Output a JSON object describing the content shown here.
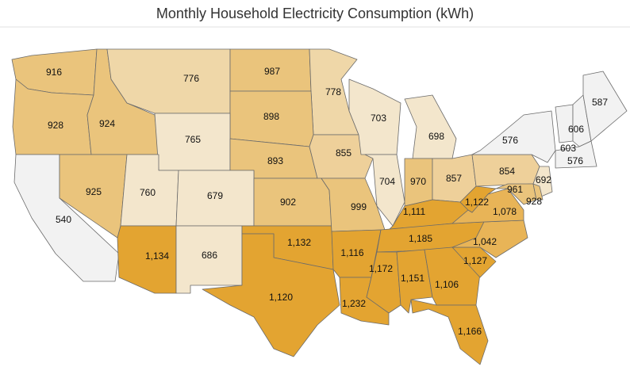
{
  "chart_data": {
    "type": "choropleth",
    "title": "Monthly Household Electricity Consumption (kWh)",
    "values": [
      916,
      928,
      924,
      776,
      987,
      778,
      898,
      765,
      893,
      855,
      703,
      698,
      540,
      925,
      760,
      679,
      1134,
      686,
      902,
      1132,
      1120,
      999,
      1116,
      1232,
      704,
      970,
      857,
      1111,
      1185,
      1172,
      1151,
      1106,
      1166,
      1127,
      1042,
      1078,
      1122,
      854,
      576,
      606,
      603,
      587,
      576,
      692,
      961,
      928
    ],
    "value_labels": [
      "916",
      "928",
      "924",
      "776",
      "987",
      "778",
      "898",
      "765",
      "893",
      "855",
      "703",
      "698",
      "540",
      "925",
      "760",
      "679",
      "1,134",
      "686",
      "902",
      "1,132",
      "1,120",
      "999",
      "1,116",
      "1,232",
      "704",
      "970",
      "857",
      "1,111",
      "1,185",
      "1,172",
      "1,151",
      "1,106",
      "1,166",
      "1,127",
      "1,042",
      "1,078",
      "1,122",
      "854",
      "576",
      "606",
      "603",
      "587",
      "576",
      "692",
      "961",
      "928"
    ],
    "colors": [
      "#eac47c",
      "#eac47c",
      "#eac47c",
      "#efd7a8",
      "#eac47c",
      "#efd7a8",
      "#eac47c",
      "#f3e6cc",
      "#eac47c",
      "#eed09a",
      "#f3e6cc",
      "#f3e6cc",
      "#f2f2f2",
      "#eac47c",
      "#f3e6cc",
      "#f3e6cc",
      "#e3a431",
      "#f3e6cc",
      "#eac47c",
      "#e3a431",
      "#e3a431",
      "#eac47c",
      "#e3a431",
      "#e3a431",
      "#f3e6cc",
      "#eac47c",
      "#eed09a",
      "#e3a431",
      "#e3a431",
      "#e3a431",
      "#e3a431",
      "#e3a431",
      "#e3a431",
      "#e3a431",
      "#e8b457",
      "#e8b457",
      "#e3a431",
      "#eed09a",
      "#f2f2f2",
      "#f2f2f2",
      "#f2f2f2",
      "#f2f2f2",
      "#f2f2f2",
      "#f3e6cc",
      "#eac47c",
      "#eac47c"
    ]
  }
}
